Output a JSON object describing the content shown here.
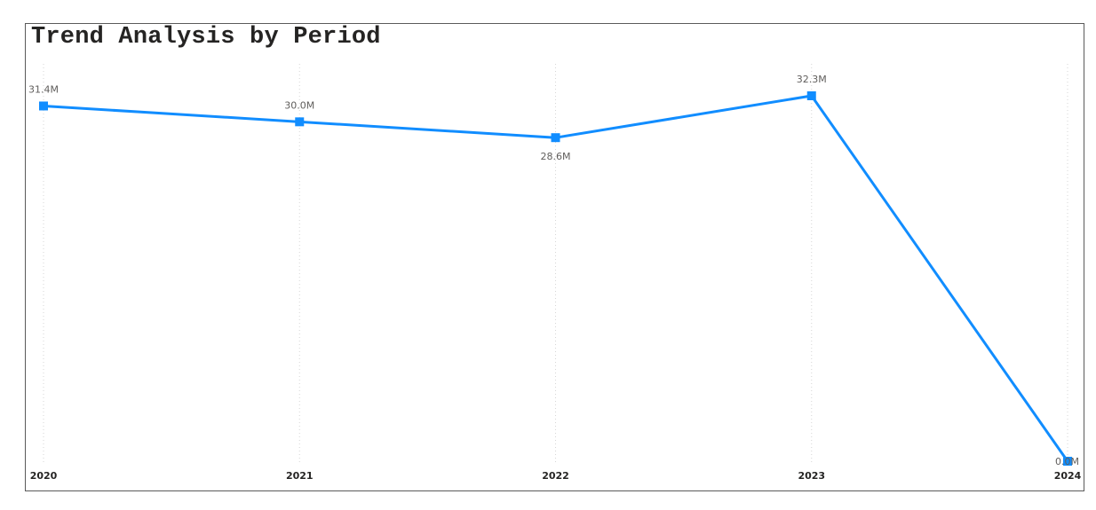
{
  "chart_data": {
    "type": "line",
    "title": "Trend Analysis by Period",
    "categories": [
      "2020",
      "2021",
      "2022",
      "2023",
      "2024"
    ],
    "series": [
      {
        "values": [
          31.4,
          30.0,
          28.6,
          32.3,
          0.0
        ],
        "data_labels": [
          "31.4M",
          "30.0M",
          "28.6M",
          "32.3M",
          "0.0M"
        ],
        "color": "#118DFF"
      }
    ],
    "value_unit": "M",
    "ylim": [
      0,
      32.3
    ],
    "grid": "vertical-dotted",
    "markers": "square"
  }
}
